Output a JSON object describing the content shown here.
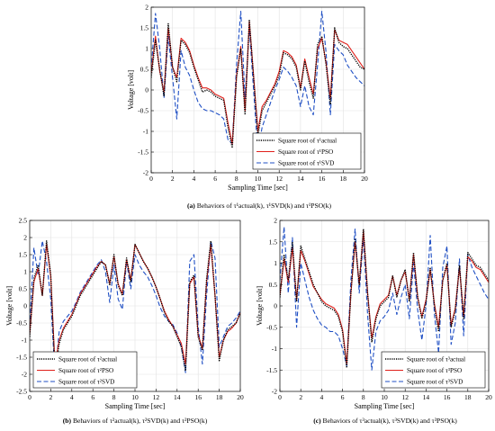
{
  "figure": {
    "colors": {
      "actual": "#000000",
      "pso": "#e0201b",
      "svd": "#1f4fc4"
    }
  },
  "chart_data": [
    {
      "type": "line",
      "xlabel": "Sampling Time [sec]",
      "ylabel": "Voltage [volt]",
      "xlim": [
        0,
        20
      ],
      "ylim": [
        -2,
        2
      ],
      "xticks": [
        0,
        2,
        4,
        6,
        8,
        10,
        12,
        14,
        16,
        18,
        20
      ],
      "yticks": [
        -2,
        -1.5,
        -1,
        -0.5,
        0,
        0.5,
        1,
        1.5,
        2
      ],
      "grid": true,
      "legend_position": "lower-right",
      "caption": {
        "tag": "(a)",
        "text": "Behaviors of τ¹actual(k), τ¹SVD(k) and τ¹PSO(k)"
      },
      "x": [
        0,
        0.4,
        0.8,
        1.2,
        1.6,
        2.0,
        2.4,
        2.8,
        3.2,
        3.6,
        4.0,
        4.4,
        4.8,
        5.2,
        5.6,
        6.0,
        6.4,
        6.8,
        7.2,
        7.6,
        8.0,
        8.4,
        8.8,
        9.2,
        9.6,
        10.0,
        10.4,
        10.8,
        11.2,
        11.6,
        12.0,
        12.4,
        12.8,
        13.2,
        13.6,
        14.0,
        14.4,
        14.8,
        15.2,
        15.6,
        16.0,
        16.4,
        16.8,
        17.2,
        17.6,
        18.0,
        18.4,
        18.8,
        19.2,
        19.6,
        20.0
      ],
      "series": [
        {
          "name": "Square root of τ¹actual",
          "key": "actual",
          "style": "dotted",
          "values": [
            0.3,
            1.2,
            0.5,
            -0.15,
            1.6,
            0.55,
            0.2,
            1.2,
            1.1,
            0.9,
            0.55,
            0.25,
            -0.05,
            0.0,
            -0.05,
            -0.15,
            -0.2,
            -0.25,
            -0.9,
            -1.4,
            0.3,
            1.0,
            -0.6,
            1.7,
            0.3,
            -1.1,
            -0.5,
            -0.3,
            -0.1,
            0.1,
            0.35,
            0.9,
            0.85,
            0.75,
            0.55,
            0.0,
            0.7,
            0.2,
            -0.2,
            1.1,
            1.3,
            0.6,
            -0.35,
            1.5,
            1.15,
            1.05,
            1.0,
            0.85,
            0.7,
            0.55,
            0.5
          ]
        },
        {
          "name": "Square root of τ¹PSO",
          "key": "pso",
          "style": "solid",
          "values": [
            0.4,
            1.3,
            0.45,
            -0.05,
            1.5,
            0.55,
            0.3,
            1.25,
            1.15,
            0.95,
            0.6,
            0.3,
            0.05,
            0.05,
            0.0,
            -0.1,
            -0.15,
            -0.2,
            -0.8,
            -1.3,
            0.35,
            1.05,
            -0.5,
            1.65,
            0.35,
            -1.0,
            -0.4,
            -0.25,
            -0.05,
            0.15,
            0.45,
            0.95,
            0.9,
            0.8,
            0.6,
            0.05,
            0.75,
            0.3,
            -0.1,
            1.0,
            1.25,
            0.65,
            -0.2,
            1.45,
            1.2,
            1.15,
            1.1,
            0.95,
            0.8,
            0.65,
            0.5
          ]
        },
        {
          "name": "Square root of τ¹SVD",
          "key": "svd",
          "style": "dashed",
          "values": [
            0.5,
            1.85,
            1.0,
            -0.2,
            1.3,
            0.3,
            -0.7,
            0.95,
            0.55,
            0.35,
            0.0,
            -0.3,
            -0.45,
            -0.5,
            -0.5,
            -0.55,
            -0.6,
            -0.7,
            -1.2,
            -1.3,
            0.6,
            1.9,
            -0.2,
            1.5,
            0.0,
            -1.5,
            -0.9,
            -0.6,
            -0.3,
            0.0,
            0.25,
            0.55,
            0.45,
            0.3,
            0.1,
            -0.4,
            0.1,
            -0.4,
            -0.6,
            0.6,
            1.9,
            0.9,
            -0.6,
            1.1,
            0.95,
            0.85,
            0.6,
            0.45,
            0.3,
            0.2,
            0.1
          ]
        }
      ]
    },
    {
      "type": "line",
      "xlabel": "Sampling Time [sec]",
      "ylabel": "Voltage [volt]",
      "xlim": [
        0,
        20
      ],
      "ylim": [
        -2.5,
        2.5
      ],
      "xticks": [
        0,
        2,
        4,
        6,
        8,
        10,
        12,
        14,
        16,
        18,
        20
      ],
      "yticks": [
        -2.5,
        -2,
        -1.5,
        -1,
        -0.5,
        0,
        0.5,
        1,
        1.5,
        2,
        2.5
      ],
      "grid": true,
      "legend_position": "lower-left",
      "caption": {
        "tag": "(b)",
        "text": "Behaviors of τ²actual(k), τ²SVD(k) and τ²PSO(k)"
      },
      "x": [
        0,
        0.4,
        0.8,
        1.2,
        1.6,
        2.0,
        2.4,
        2.8,
        3.2,
        3.6,
        4.0,
        4.4,
        4.8,
        5.2,
        5.6,
        6.0,
        6.4,
        6.8,
        7.2,
        7.6,
        8.0,
        8.4,
        8.8,
        9.2,
        9.6,
        10.0,
        10.4,
        10.8,
        11.2,
        11.6,
        12.0,
        12.4,
        12.8,
        13.2,
        13.6,
        14.0,
        14.4,
        14.8,
        15.2,
        15.6,
        16.0,
        16.4,
        16.8,
        17.2,
        17.6,
        18.0,
        18.4,
        18.8,
        19.2,
        19.6,
        20.0
      ],
      "series": [
        {
          "name": "Square root of τ²actual",
          "key": "actual",
          "style": "dotted",
          "values": [
            -0.9,
            0.8,
            1.2,
            0.3,
            1.9,
            0.9,
            -2.0,
            -1.1,
            -0.7,
            -0.5,
            -0.3,
            0.0,
            0.3,
            0.5,
            0.7,
            0.9,
            1.1,
            1.3,
            1.2,
            0.6,
            1.5,
            0.6,
            0.3,
            1.4,
            0.7,
            1.8,
            1.55,
            1.3,
            1.1,
            0.85,
            0.55,
            0.2,
            -0.2,
            -0.45,
            -0.6,
            -0.9,
            -1.2,
            -1.9,
            0.7,
            0.9,
            -0.9,
            -1.3,
            0.8,
            1.9,
            0.3,
            -1.6,
            -1.0,
            -0.7,
            -0.6,
            -0.5,
            -0.2
          ]
        },
        {
          "name": "Square root of τ²PSO",
          "key": "pso",
          "style": "solid",
          "values": [
            -0.8,
            0.7,
            1.1,
            0.3,
            1.8,
            0.85,
            -1.7,
            -1.0,
            -0.65,
            -0.45,
            -0.25,
            0.05,
            0.35,
            0.55,
            0.75,
            0.95,
            1.15,
            1.3,
            1.2,
            0.65,
            1.45,
            0.65,
            0.35,
            1.35,
            0.75,
            1.8,
            1.55,
            1.3,
            1.1,
            0.85,
            0.55,
            0.2,
            -0.15,
            -0.4,
            -0.6,
            -0.85,
            -1.1,
            -1.7,
            0.65,
            0.85,
            -0.85,
            -1.25,
            0.7,
            1.8,
            0.3,
            -1.5,
            -1.0,
            -0.75,
            -0.65,
            -0.5,
            -0.2
          ]
        },
        {
          "name": "Square root of τ²SVD",
          "key": "svd",
          "style": "dashed",
          "values": [
            -0.6,
            1.7,
            0.9,
            1.9,
            1.3,
            0.2,
            -2.05,
            -0.75,
            -0.45,
            -0.3,
            -0.15,
            0.1,
            0.4,
            0.6,
            0.8,
            1.0,
            1.2,
            1.35,
            1.0,
            0.1,
            1.2,
            0.2,
            -0.1,
            1.3,
            0.5,
            1.5,
            1.2,
            1.0,
            0.85,
            0.6,
            0.3,
            -0.05,
            -0.3,
            -0.45,
            -0.55,
            -0.8,
            -1.2,
            -1.95,
            1.3,
            1.5,
            -0.6,
            -1.7,
            0.3,
            1.9,
            1.4,
            -1.2,
            -0.9,
            -0.6,
            -0.5,
            -0.35,
            -0.15
          ]
        }
      ]
    },
    {
      "type": "line",
      "xlabel": "Sampling Time [sec]",
      "ylabel": "Voltage [volt]",
      "xlim": [
        0,
        20
      ],
      "ylim": [
        -2,
        2
      ],
      "xticks": [
        0,
        2,
        4,
        6,
        8,
        10,
        12,
        14,
        16,
        18,
        20
      ],
      "yticks": [
        -2,
        -1.5,
        -1,
        -0.5,
        0,
        0.5,
        1,
        1.5,
        2
      ],
      "grid": true,
      "legend_position": "lower-right",
      "caption": {
        "tag": "(c)",
        "text": "Behaviors of τ³actual(k), τ³SVD(k) and τ³PSO(k)"
      },
      "x": [
        0,
        0.4,
        0.8,
        1.2,
        1.6,
        2.0,
        2.4,
        2.8,
        3.2,
        3.6,
        4.0,
        4.4,
        4.8,
        5.2,
        5.6,
        6.0,
        6.4,
        6.8,
        7.2,
        7.6,
        8.0,
        8.4,
        8.8,
        9.2,
        9.6,
        10.0,
        10.4,
        10.8,
        11.2,
        11.6,
        12.0,
        12.4,
        12.8,
        13.2,
        13.6,
        14.0,
        14.4,
        14.8,
        15.2,
        15.6,
        16.0,
        16.4,
        16.8,
        17.2,
        17.6,
        18.0,
        18.4,
        18.8,
        19.2,
        19.6,
        20.0
      ],
      "series": [
        {
          "name": "Square root of τ³actual",
          "key": "actual",
          "style": "dotted",
          "values": [
            0.2,
            1.2,
            0.6,
            1.5,
            0.1,
            1.4,
            1.1,
            0.8,
            0.5,
            0.3,
            0.1,
            0.0,
            -0.05,
            -0.1,
            -0.25,
            -0.6,
            -1.45,
            0.3,
            1.55,
            0.5,
            1.8,
            0.3,
            -0.85,
            -0.3,
            0.0,
            0.1,
            0.2,
            0.7,
            0.2,
            0.6,
            0.85,
            0.1,
            1.25,
            0.2,
            -0.3,
            0.1,
            0.9,
            0.0,
            -0.6,
            0.6,
            1.0,
            -0.5,
            -0.1,
            0.95,
            -0.3,
            1.25,
            1.1,
            0.95,
            0.9,
            0.75,
            0.6
          ]
        },
        {
          "name": "Square root of τ³PSO",
          "key": "pso",
          "style": "solid",
          "values": [
            0.25,
            1.1,
            0.55,
            1.35,
            0.15,
            1.3,
            1.05,
            0.75,
            0.45,
            0.3,
            0.15,
            0.05,
            0.0,
            -0.05,
            -0.2,
            -0.55,
            -1.35,
            0.3,
            1.5,
            0.5,
            1.75,
            0.3,
            -0.75,
            -0.25,
            0.05,
            0.15,
            0.25,
            0.7,
            0.25,
            0.6,
            0.8,
            0.15,
            1.2,
            0.2,
            -0.25,
            0.15,
            0.85,
            0.05,
            -0.5,
            0.6,
            0.95,
            -0.45,
            -0.05,
            0.9,
            -0.25,
            1.15,
            1.05,
            0.9,
            0.85,
            0.7,
            0.55
          ]
        },
        {
          "name": "Square root of τ³SVD",
          "key": "svd",
          "style": "dashed",
          "values": [
            0.6,
            1.85,
            0.3,
            1.6,
            -0.5,
            1.0,
            0.6,
            0.2,
            -0.1,
            -0.3,
            -0.45,
            -0.5,
            -0.6,
            -0.6,
            -0.7,
            -1.0,
            -1.4,
            0.6,
            1.8,
            0.3,
            1.6,
            -0.2,
            -1.5,
            -0.6,
            -0.35,
            -0.25,
            -0.1,
            0.3,
            -0.2,
            0.2,
            0.5,
            -0.3,
            1.0,
            -0.1,
            -0.8,
            0.0,
            1.65,
            -0.2,
            -1.1,
            0.9,
            1.4,
            -0.9,
            -0.4,
            1.1,
            -0.7,
            1.2,
            0.9,
            0.7,
            0.5,
            0.3,
            0.15
          ]
        }
      ]
    }
  ]
}
